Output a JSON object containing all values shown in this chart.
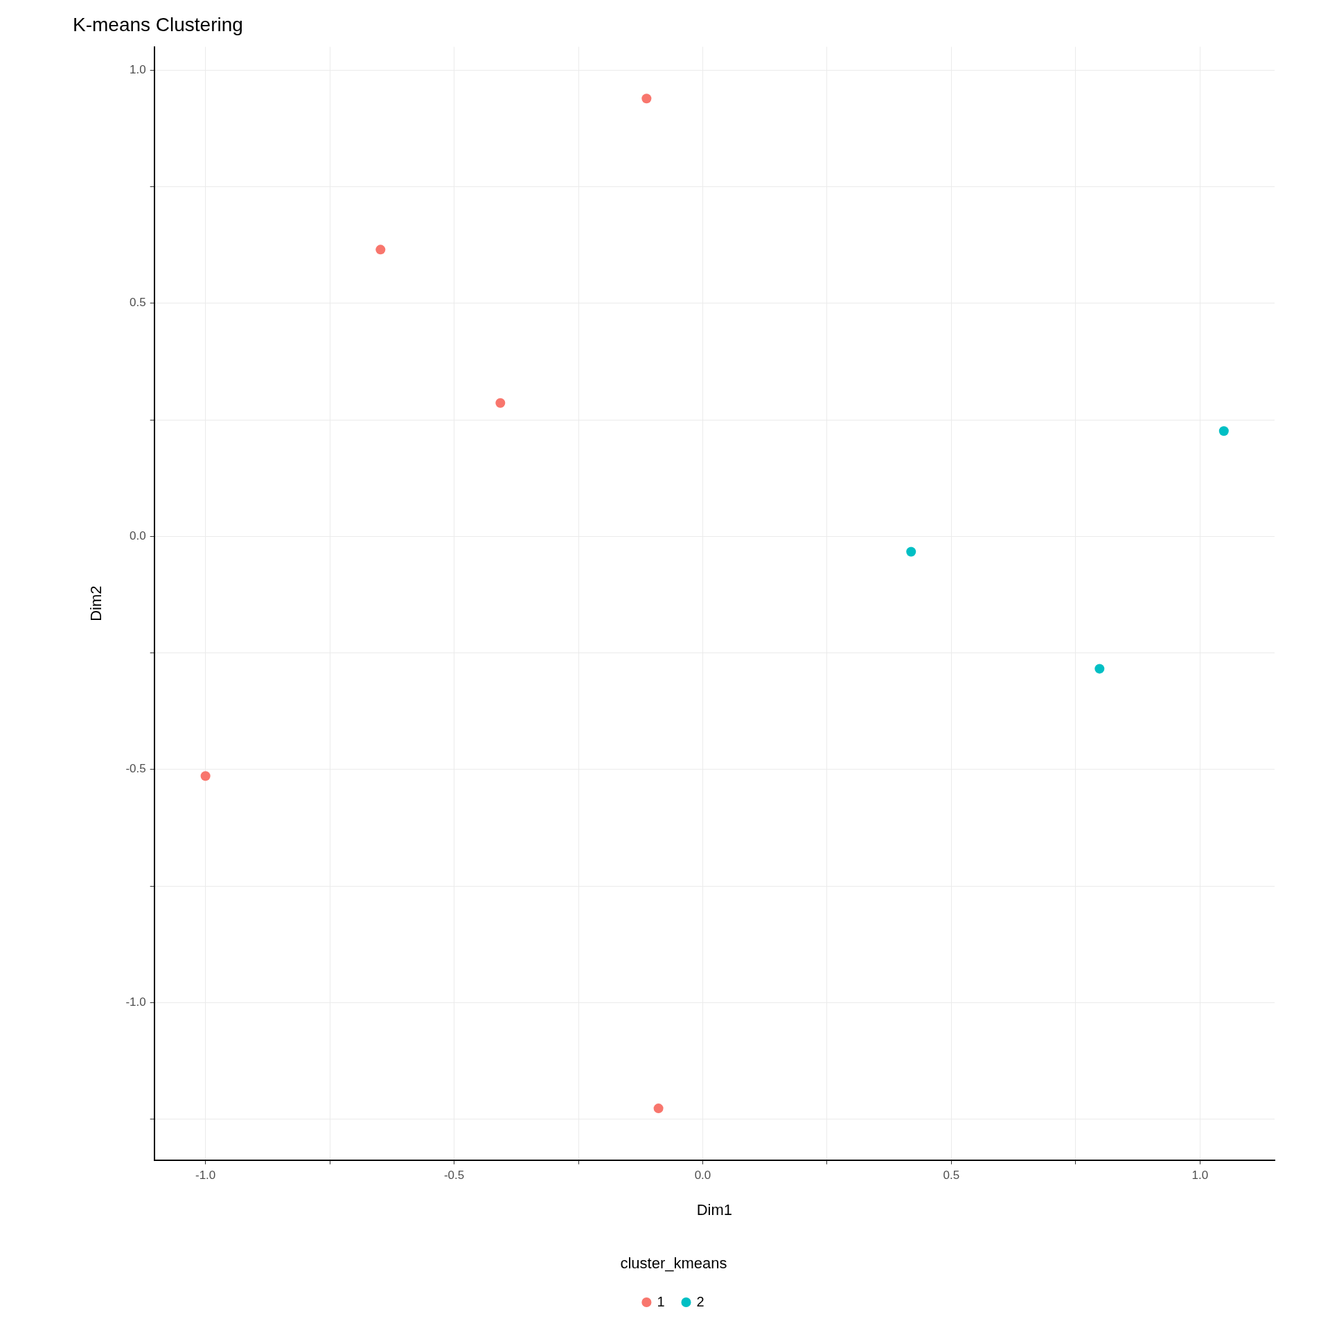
{
  "chart_data": {
    "type": "scatter",
    "title": "K-means Clustering",
    "xlabel": "Dim1",
    "ylabel": "Dim2",
    "legend_title": "cluster_kmeans",
    "legend": "bottom",
    "grid": true,
    "marker": "circle",
    "xlim": [
      -1.103,
      1.15
    ],
    "ylim": [
      -1.338,
      1.05
    ],
    "xticks": [
      {
        "value": -1,
        "label": "-1.0"
      },
      {
        "value": -0.75,
        "label": null
      },
      -0.5,
      {
        "value": -0.25,
        "label": null
      },
      {
        "value": 0,
        "label": "0.0"
      },
      {
        "value": 0.25,
        "label": null
      },
      0.5,
      {
        "value": 0.75,
        "label": null
      },
      {
        "value": 1,
        "label": "1.0"
      }
    ],
    "yticks": [
      {
        "value": -1.25,
        "label": null
      },
      {
        "value": -1,
        "label": "-1.0"
      },
      {
        "value": -0.75,
        "label": null
      },
      -0.5,
      {
        "value": -0.25,
        "label": null
      },
      {
        "value": 0,
        "label": "0.0"
      },
      {
        "value": 0.25,
        "label": null
      },
      0.5,
      {
        "value": 0.75,
        "label": null
      },
      {
        "value": 1,
        "label": "1.0"
      }
    ],
    "series": [
      {
        "name": "1",
        "color": "#f8766d",
        "x": [
          -0.113,
          -0.648,
          -0.407,
          -1.0,
          -0.089
        ],
        "values": [
          0.939,
          0.615,
          0.286,
          -0.514,
          -1.227
        ]
      },
      {
        "name": "2",
        "color": "#00bfc4",
        "x": [
          0.419,
          0.798,
          1.048
        ],
        "values": [
          -0.033,
          -0.284,
          0.226
        ]
      }
    ]
  }
}
